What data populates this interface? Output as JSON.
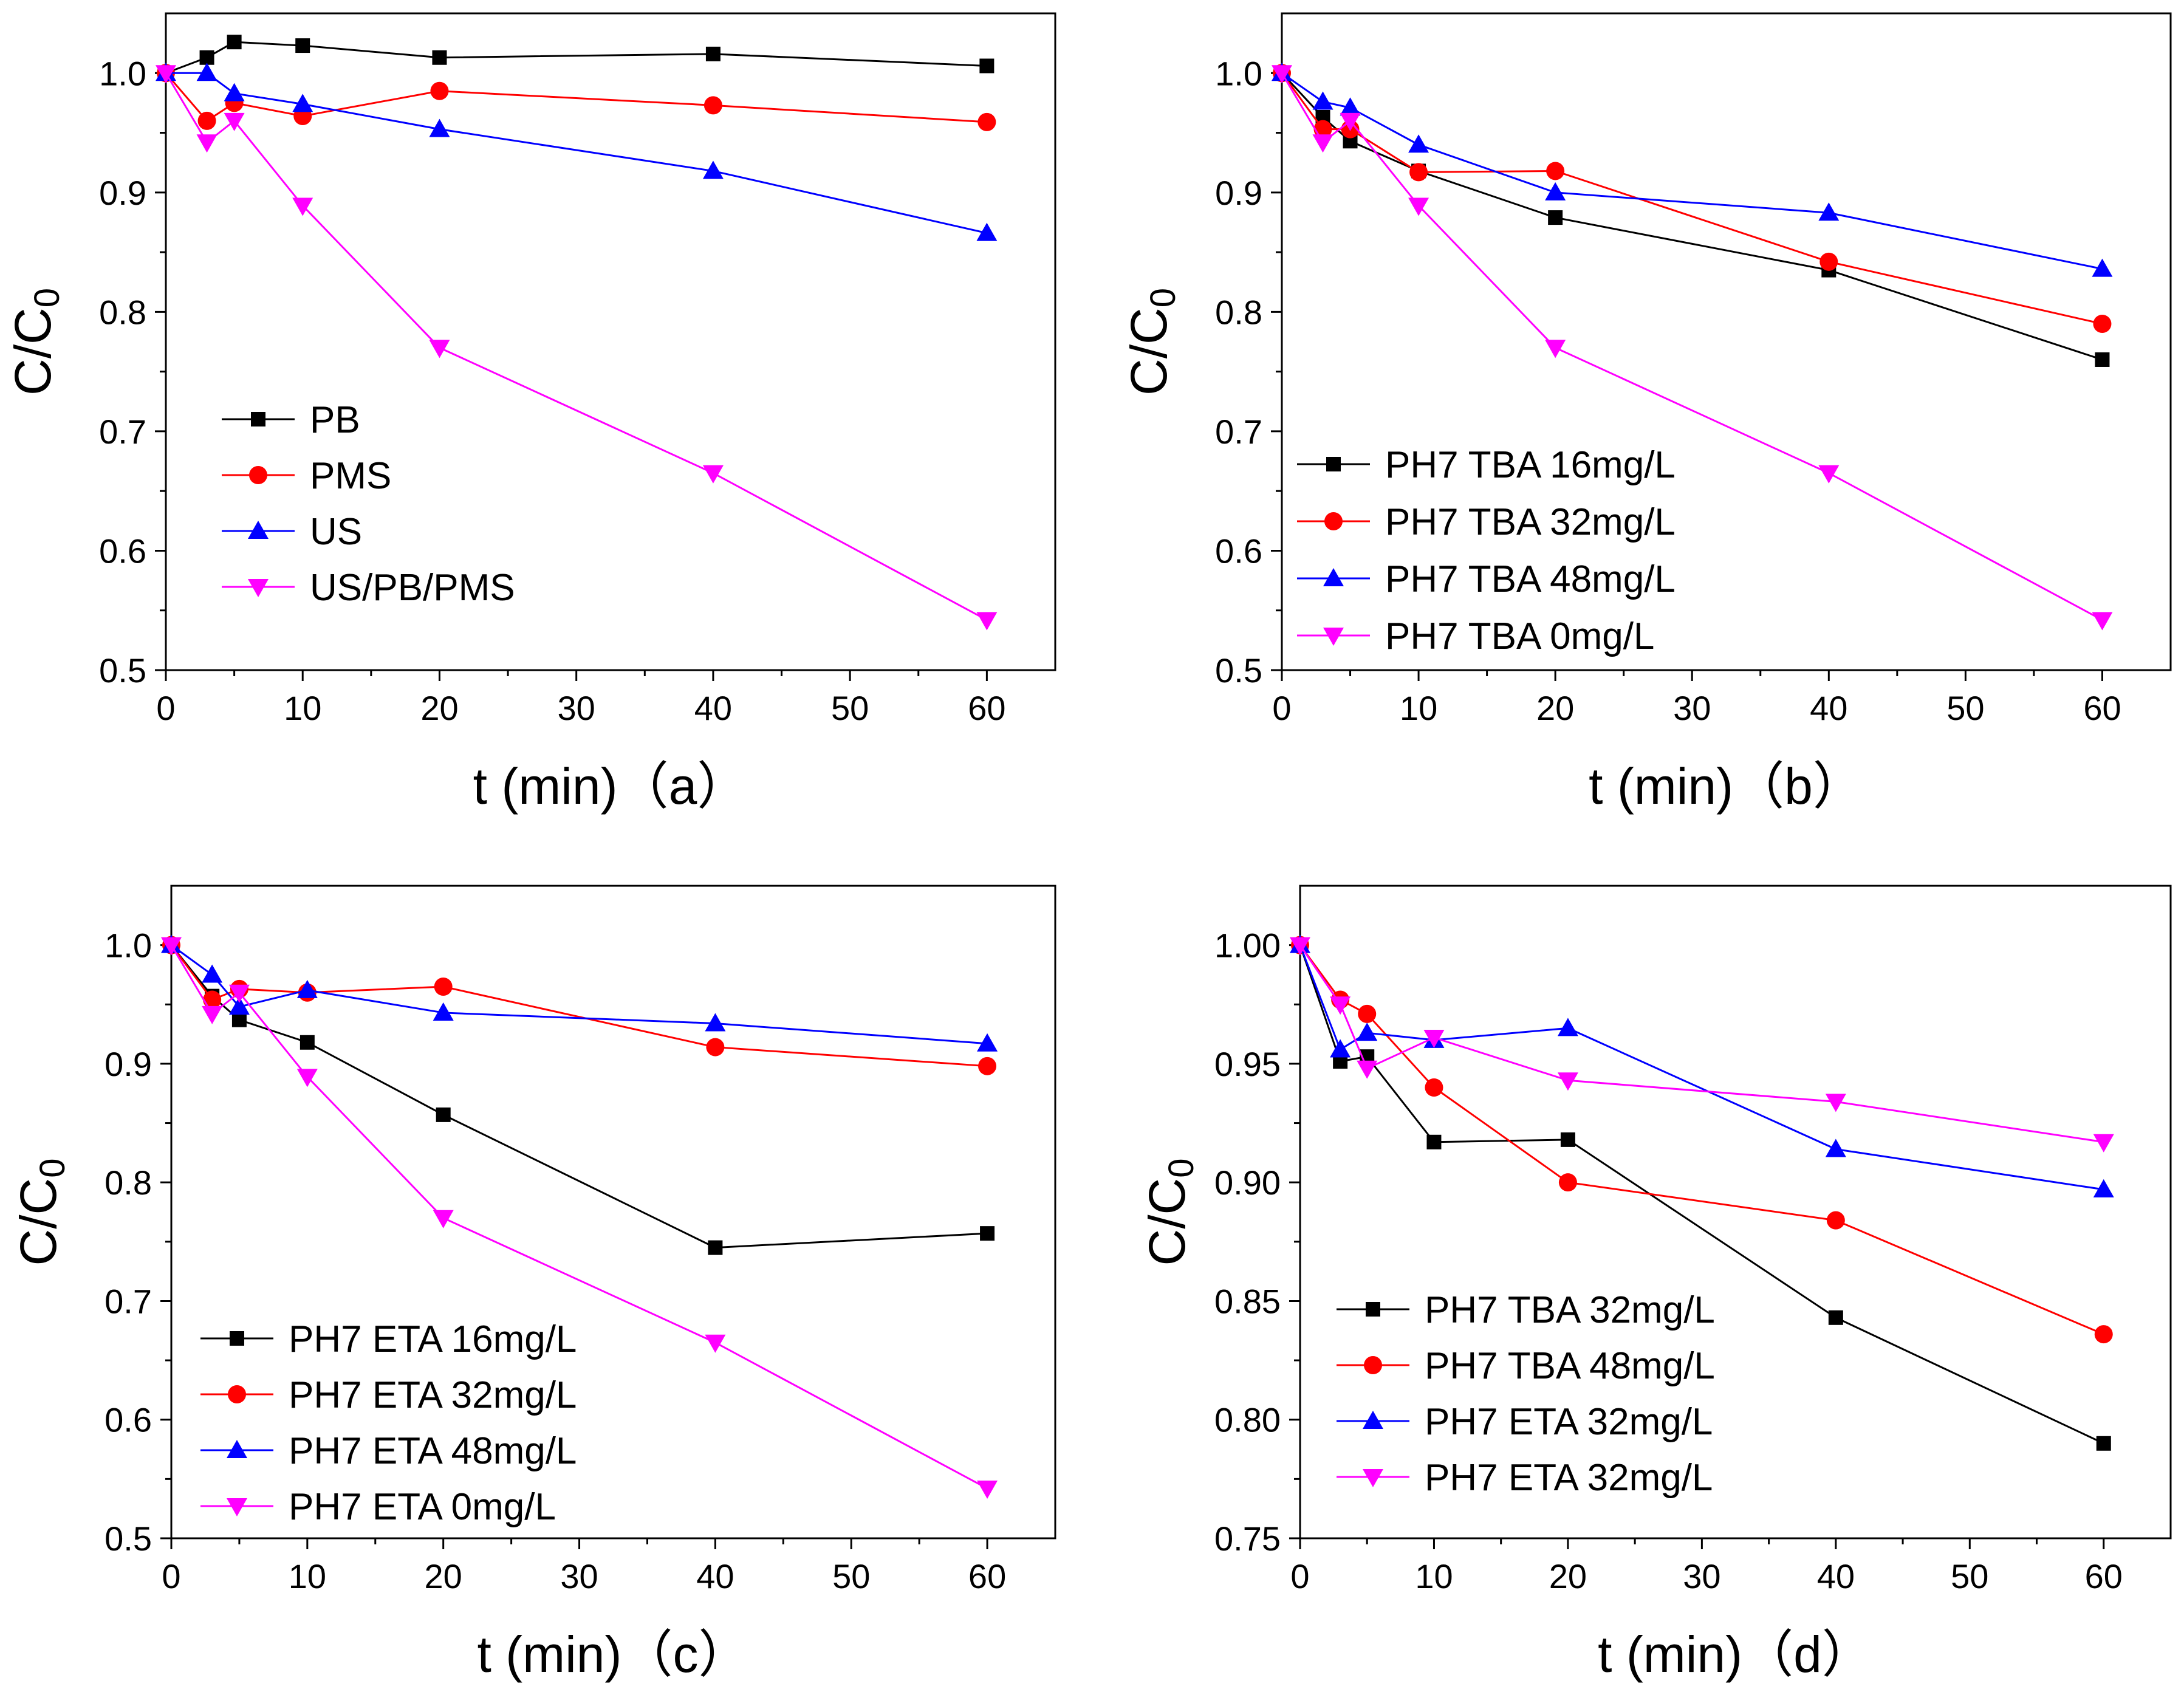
{
  "chart_data": [
    {
      "panel": "a",
      "type": "line",
      "xlabel": "t (min)（a）",
      "ylabel": "C/C0",
      "xlim": [
        0,
        65
      ],
      "ylim": [
        0.5,
        1.05
      ],
      "xticks": [
        0,
        10,
        20,
        30,
        40,
        50,
        60
      ],
      "yticks": [
        0.5,
        0.6,
        0.7,
        0.8,
        0.9,
        1.0
      ],
      "ytick_labels": [
        "0.5",
        "0.6",
        "0.7",
        "0.8",
        "0.9",
        "1.0"
      ],
      "legend_position": "middle-left",
      "x": [
        0,
        3,
        5,
        10,
        20,
        40,
        60
      ],
      "series": [
        {
          "name": "PB",
          "color": "#000000",
          "marker": "square",
          "values": [
            1.0,
            1.013,
            1.026,
            1.023,
            1.013,
            1.016,
            1.006
          ]
        },
        {
          "name": "PMS",
          "color": "#ff0000",
          "marker": "circle",
          "values": [
            1.0,
            0.96,
            0.975,
            0.964,
            0.985,
            0.973,
            0.959
          ]
        },
        {
          "name": "US",
          "color": "#0000ff",
          "marker": "triangle-up",
          "values": [
            1.0,
            1.0,
            0.983,
            0.974,
            0.953,
            0.918,
            0.866
          ]
        },
        {
          "name": "US/PB/PMS",
          "color": "#ff00ff",
          "marker": "triangle-down",
          "values": [
            1.0,
            0.942,
            0.96,
            0.889,
            0.77,
            0.665,
            0.542
          ]
        }
      ]
    },
    {
      "panel": "b",
      "type": "line",
      "xlabel": "t (min)（b）",
      "ylabel": "C/C0",
      "xlim": [
        0,
        65
      ],
      "ylim": [
        0.5,
        1.05
      ],
      "xticks": [
        0,
        10,
        20,
        30,
        40,
        50,
        60
      ],
      "yticks": [
        0.5,
        0.6,
        0.7,
        0.8,
        0.9,
        1.0
      ],
      "ytick_labels": [
        "0.5",
        "0.6",
        "0.7",
        "0.8",
        "0.9",
        "1.0"
      ],
      "legend_position": "bottom-left",
      "x": [
        0,
        3,
        5,
        10,
        20,
        40,
        60
      ],
      "series": [
        {
          "name": "PH7 TBA 16mg/L",
          "color": "#000000",
          "marker": "square",
          "values": [
            1.0,
            0.963,
            0.943,
            0.918,
            0.879,
            0.835,
            0.76
          ]
        },
        {
          "name": "PH7 TBA 32mg/L",
          "color": "#ff0000",
          "marker": "circle",
          "values": [
            1.0,
            0.953,
            0.953,
            0.917,
            0.918,
            0.842,
            0.79
          ]
        },
        {
          "name": "PH7 TBA 48mg/L",
          "color": "#0000ff",
          "marker": "triangle-up",
          "values": [
            1.0,
            0.976,
            0.971,
            0.94,
            0.9,
            0.883,
            0.836
          ]
        },
        {
          "name": "PH7 TBA 0mg/L",
          "color": "#ff00ff",
          "marker": "triangle-down",
          "values": [
            1.0,
            0.942,
            0.96,
            0.889,
            0.77,
            0.665,
            0.542
          ]
        }
      ]
    },
    {
      "panel": "c",
      "type": "line",
      "xlabel": "t (min)（c）",
      "ylabel": "C/C0",
      "xlim": [
        0,
        65
      ],
      "ylim": [
        0.5,
        1.05
      ],
      "xticks": [
        0,
        10,
        20,
        30,
        40,
        50,
        60
      ],
      "yticks": [
        0.5,
        0.6,
        0.7,
        0.8,
        0.9,
        1.0
      ],
      "ytick_labels": [
        "0.5",
        "0.6",
        "0.7",
        "0.8",
        "0.9",
        "1.0"
      ],
      "legend_position": "bottom-left",
      "x": [
        0,
        3,
        5,
        10,
        20,
        40,
        60
      ],
      "series": [
        {
          "name": "PH7 ETA 16mg/L",
          "color": "#000000",
          "marker": "square",
          "values": [
            1.0,
            0.957,
            0.937,
            0.918,
            0.857,
            0.745,
            0.757
          ]
        },
        {
          "name": "PH7 ETA 32mg/L",
          "color": "#ff0000",
          "marker": "circle",
          "values": [
            1.0,
            0.954,
            0.963,
            0.96,
            0.965,
            0.914,
            0.898
          ]
        },
        {
          "name": "PH7 ETA 48mg/L",
          "color": "#0000ff",
          "marker": "triangle-up",
          "values": [
            1.0,
            0.975,
            0.948,
            0.962,
            0.943,
            0.934,
            0.917
          ]
        },
        {
          "name": "PH7 ETA 0mg/L",
          "color": "#ff00ff",
          "marker": "triangle-down",
          "values": [
            1.0,
            0.942,
            0.96,
            0.889,
            0.77,
            0.665,
            0.542
          ]
        }
      ]
    },
    {
      "panel": "d",
      "type": "line",
      "xlabel": "t (min)（d）",
      "ylabel": "C/C0",
      "xlim": [
        0,
        65
      ],
      "ylim": [
        0.75,
        1.025
      ],
      "xticks": [
        0,
        10,
        20,
        30,
        40,
        50,
        60
      ],
      "yticks": [
        0.75,
        0.8,
        0.85,
        0.9,
        0.95,
        1.0
      ],
      "ytick_labels": [
        "0.75",
        "0.80",
        "0.85",
        "0.90",
        "0.95",
        "1.00"
      ],
      "legend_position": "bottom-left",
      "x": [
        0,
        3,
        5,
        10,
        20,
        40,
        60
      ],
      "series": [
        {
          "name": "PH7 TBA 32mg/L",
          "color": "#000000",
          "marker": "square",
          "values": [
            1.0,
            0.951,
            0.953,
            0.917,
            0.918,
            0.843,
            0.79
          ]
        },
        {
          "name": "PH7 TBA 48mg/L",
          "color": "#ff0000",
          "marker": "circle",
          "values": [
            1.0,
            0.977,
            0.971,
            0.94,
            0.9,
            0.884,
            0.836
          ]
        },
        {
          "name": "PH7 ETA 32mg/L",
          "color": "#0000ff",
          "marker": "triangle-up",
          "values": [
            1.0,
            0.956,
            0.963,
            0.96,
            0.965,
            0.914,
            0.897
          ]
        },
        {
          "name": "PH7 ETA 32mg/L",
          "color": "#ff00ff",
          "marker": "triangle-down",
          "values": [
            1.0,
            0.975,
            0.948,
            0.961,
            0.943,
            0.934,
            0.917
          ]
        }
      ]
    }
  ]
}
